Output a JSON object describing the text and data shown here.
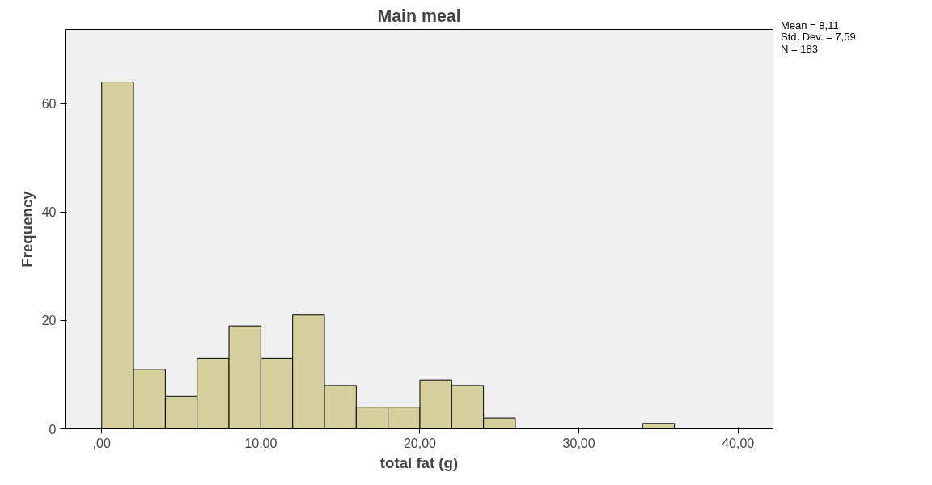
{
  "chart_data": {
    "type": "histogram",
    "title": "Main meal",
    "xlabel": "total fat (g)",
    "ylabel": "Frequency",
    "bins": [
      0,
      2,
      4,
      6,
      8,
      10,
      12,
      14,
      16,
      18,
      20,
      22,
      24,
      26,
      28,
      30,
      32,
      34,
      36
    ],
    "values": [
      64,
      11,
      6,
      13,
      19,
      13,
      21,
      8,
      4,
      4,
      9,
      8,
      2,
      0,
      0,
      0,
      0,
      1
    ],
    "color": "#d6d09c",
    "xlim": [
      -2.3,
      42.2
    ],
    "ylim": [
      0,
      73.7
    ],
    "xticks": [
      {
        "value": 0,
        "label": ",00"
      },
      {
        "value": 10,
        "label": "10,00"
      },
      {
        "value": 20,
        "label": "20,00"
      },
      {
        "value": 30,
        "label": "30,00"
      },
      {
        "value": 40,
        "label": "40,00"
      }
    ],
    "yticks": [
      0,
      20,
      40,
      60
    ],
    "grid": false,
    "annotations": [
      "Mean = 8,11",
      "Std. Dev. = 7,59",
      "N = 183"
    ]
  }
}
